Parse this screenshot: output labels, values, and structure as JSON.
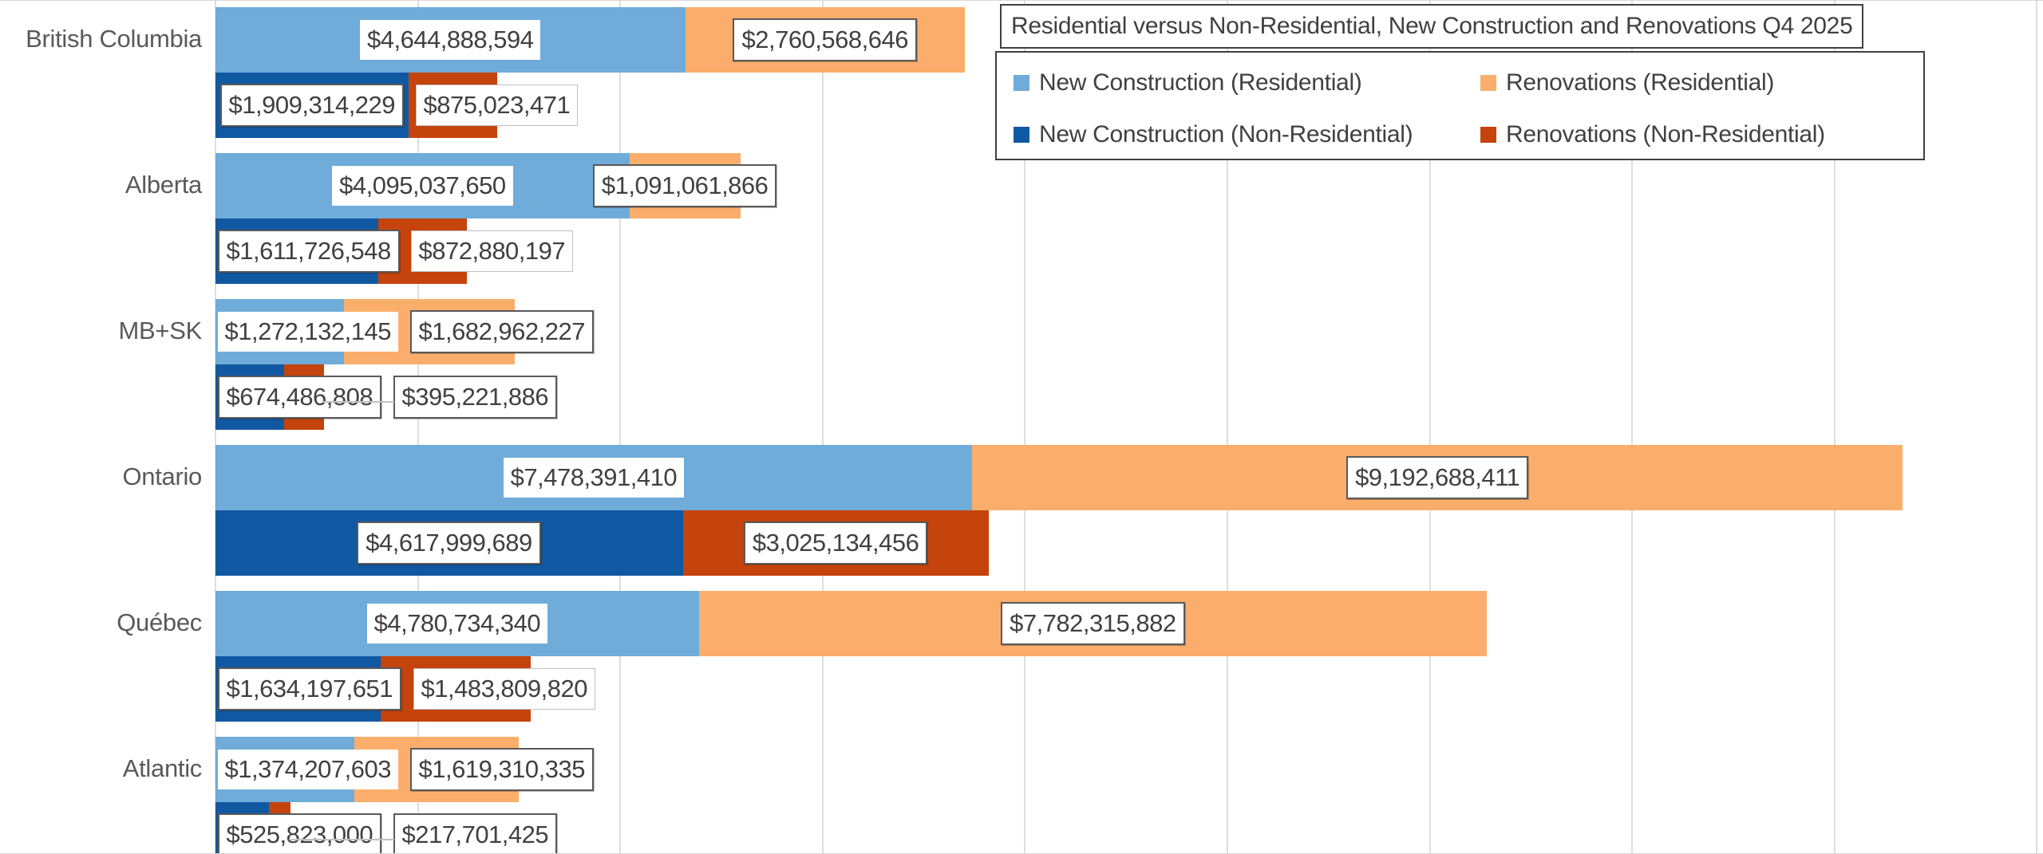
{
  "chart_data": {
    "type": "bar",
    "subtype": "horizontal-stacked-grouped",
    "title": "Residential versus Non-Residential, New Construction and Renovations Q4 2025",
    "categories": [
      "British Columbia",
      "Alberta",
      "MB+SK",
      "Ontario",
      "Québec",
      "Atlantic"
    ],
    "series": [
      {
        "name": "New Construction (Residential)",
        "color": "#6FACD9",
        "bar_group": "residential",
        "values": [
          4644888594,
          4095037650,
          1272132145,
          7478391410,
          4780734340,
          1374207603
        ]
      },
      {
        "name": "Renovations (Residential)",
        "color": "#FBAE6B",
        "bar_group": "residential",
        "values": [
          2760568646,
          1091061866,
          1682962227,
          9192688411,
          7782315882,
          1619310335
        ]
      },
      {
        "name": "New Construction (Non-Residential)",
        "color": "#1158A3",
        "bar_group": "non-residential",
        "values": [
          1909314229,
          1611726548,
          674486808,
          4617999689,
          1634197651,
          525823000
        ]
      },
      {
        "name": "Renovations (Non-Residential)",
        "color": "#C5430D",
        "bar_group": "non-residential",
        "values": [
          875023471,
          872880197,
          395221886,
          3025134456,
          1483809820,
          217701425
        ]
      }
    ],
    "data_labels": {
      "format": "$#,##0",
      "border_styles_by_series": [
        [
          "none",
          "none",
          "none",
          "none",
          "none",
          "none"
        ],
        [
          "dark",
          "dark",
          "dark",
          "dark",
          "dark",
          "dark"
        ],
        [
          "dark",
          "dark",
          "dark",
          "dark",
          "dark",
          "dark"
        ],
        [
          "light",
          "light",
          "dark",
          "dark",
          "light",
          "dark"
        ]
      ]
    },
    "axis": {
      "min": 0,
      "max": 18000000000,
      "grid_interval": 2000000000,
      "gridlines_visible": true,
      "tick_labels_visible": false
    },
    "legend": {
      "position": "top-right",
      "rows": [
        [
          "New Construction (Residential)",
          "Renovations (Residential)"
        ],
        [
          "New Construction (Non-Residential)",
          "Renovations (Non-Residential)"
        ]
      ]
    },
    "styling": {
      "background": "#FFFFFF",
      "gridline_color": "#DEDEDE",
      "category_label_color": "#595959",
      "data_label_text_color": "#404040",
      "box_border_color": "#404040",
      "leader_line_color": "#C0C0C0"
    }
  }
}
